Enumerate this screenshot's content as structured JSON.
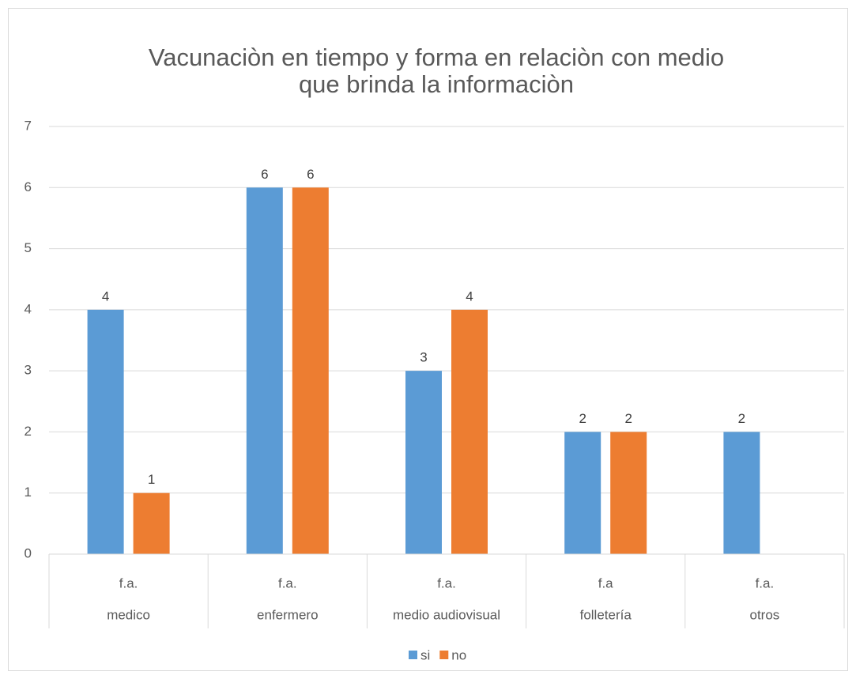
{
  "chart_data": {
    "type": "bar",
    "title": [
      "Vacunaciòn en tiempo y forma en relaciòn con medio",
      "que brinda la informaciòn"
    ],
    "categories": [
      "medico",
      "enfermero",
      "medio audiovisual",
      "folletería",
      "otros"
    ],
    "subcategories": [
      "f.a.",
      "f.a.",
      "f.a.",
      "f.a",
      "f.a."
    ],
    "series": [
      {
        "name": "si",
        "color": "#5b9bd5",
        "values": [
          4,
          6,
          3,
          2,
          2
        ]
      },
      {
        "name": "no",
        "color": "#ed7d31",
        "values": [
          1,
          6,
          4,
          2,
          null
        ]
      }
    ],
    "ylim": [
      0,
      7
    ],
    "yticks": [
      0,
      1,
      2,
      3,
      4,
      5,
      6,
      7
    ],
    "grid": true,
    "legend": "bottom"
  }
}
